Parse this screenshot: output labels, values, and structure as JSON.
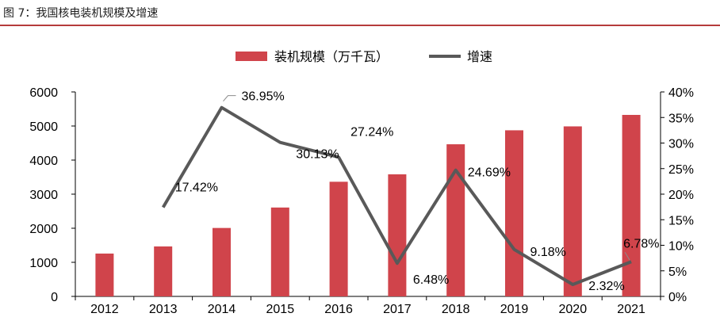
{
  "header": {
    "title": "图 7：我国核电装机规模及增速"
  },
  "chart_data": {
    "type": "bar",
    "categories": [
      "2012",
      "2013",
      "2014",
      "2015",
      "2016",
      "2017",
      "2018",
      "2019",
      "2020",
      "2021"
    ],
    "series": [
      {
        "name": "装机规模（万千瓦）",
        "type": "bar",
        "axis": "left",
        "color": "#d0444b",
        "values": [
          1257,
          1466,
          2008,
          2608,
          3364,
          3582,
          4464,
          4874,
          4989,
          5326
        ]
      },
      {
        "name": "增速",
        "type": "line",
        "axis": "right",
        "color": "#595959",
        "values": [
          null,
          17.42,
          36.95,
          30.13,
          27.24,
          6.48,
          24.69,
          9.18,
          2.32,
          6.78
        ],
        "labels": [
          null,
          "17.42%",
          "36.95%",
          "30.13%",
          "27.24%",
          "6.48%",
          "24.69%",
          "9.18%",
          "2.32%",
          "6.78%"
        ]
      }
    ],
    "y_left": {
      "ylim": [
        0,
        6000
      ],
      "ticks": [
        "0",
        "1000",
        "2000",
        "3000",
        "4000",
        "5000",
        "6000"
      ]
    },
    "y_right": {
      "ylim": [
        0,
        40
      ],
      "ticks": [
        "0%",
        "5%",
        "10%",
        "15%",
        "20%",
        "25%",
        "30%",
        "35%",
        "40%"
      ]
    },
    "legend_position": "top-center",
    "grid": false
  }
}
